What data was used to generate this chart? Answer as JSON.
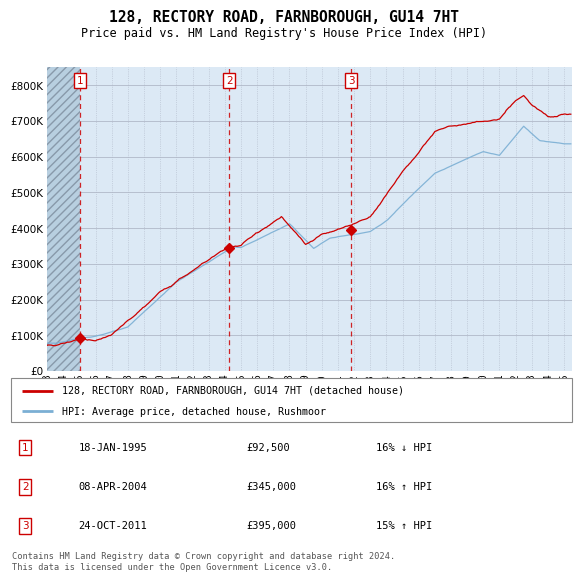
{
  "title": "128, RECTORY ROAD, FARNBOROUGH, GU14 7HT",
  "subtitle": "Price paid vs. HM Land Registry's House Price Index (HPI)",
  "legend_line1": "128, RECTORY ROAD, FARNBOROUGH, GU14 7HT (detached house)",
  "legend_line2": "HPI: Average price, detached house, Rushmoor",
  "transactions": [
    {
      "num": 1,
      "date": "18-JAN-1995",
      "price": 92500,
      "pct": "16%",
      "dir": "↓",
      "year": 1995.05
    },
    {
      "num": 2,
      "date": "08-APR-2004",
      "price": 345000,
      "pct": "16%",
      "dir": "↑",
      "year": 2004.27
    },
    {
      "num": 3,
      "date": "24-OCT-2011",
      "price": 395000,
      "pct": "15%",
      "dir": "↑",
      "year": 2011.81
    }
  ],
  "footnote1": "Contains HM Land Registry data © Crown copyright and database right 2024.",
  "footnote2": "This data is licensed under the Open Government Licence v3.0.",
  "ylim": [
    0,
    850000
  ],
  "yticks": [
    0,
    100000,
    200000,
    300000,
    400000,
    500000,
    600000,
    700000,
    800000
  ],
  "xlim_start": 1993.0,
  "xlim_end": 2025.5,
  "hatch_end_year": 1995.05,
  "bg_color": "#dce9f5",
  "hatch_color": "#b8cfe0",
  "grid_color": "#b0b8c8",
  "line_color_red": "#cc0000",
  "line_color_blue": "#7bafd4",
  "vline_color": "#cc0000",
  "box_color": "#cc0000",
  "xtick_years": [
    1993,
    1994,
    1995,
    1996,
    1997,
    1998,
    1999,
    2000,
    2001,
    2002,
    2003,
    2004,
    2005,
    2006,
    2007,
    2008,
    2009,
    2010,
    2011,
    2012,
    2013,
    2014,
    2015,
    2016,
    2017,
    2018,
    2019,
    2020,
    2021,
    2022,
    2023,
    2024,
    2025
  ]
}
